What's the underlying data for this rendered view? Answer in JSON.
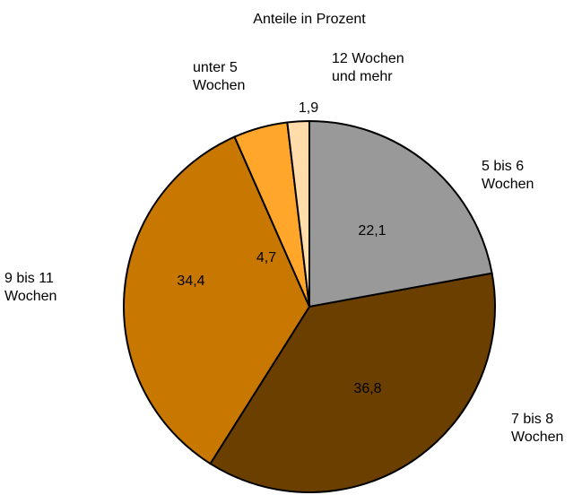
{
  "chart_data": {
    "type": "pie",
    "title": "Anteile in Prozent",
    "categories": [
      "5 bis 6\nWochen",
      "7 bis 8\nWochen",
      "9 bis 11\nWochen",
      "unter 5\nWochen",
      "12 Wochen\nund mehr"
    ],
    "values": [
      22.1,
      36.8,
      34.4,
      4.7,
      1.9
    ],
    "value_labels": [
      "22,1",
      "36,8",
      "34,4",
      "4,7",
      "1,9"
    ],
    "colors": [
      "#999999",
      "#6b3f00",
      "#c87800",
      "#ffa62b",
      "#ffdcaa"
    ]
  }
}
